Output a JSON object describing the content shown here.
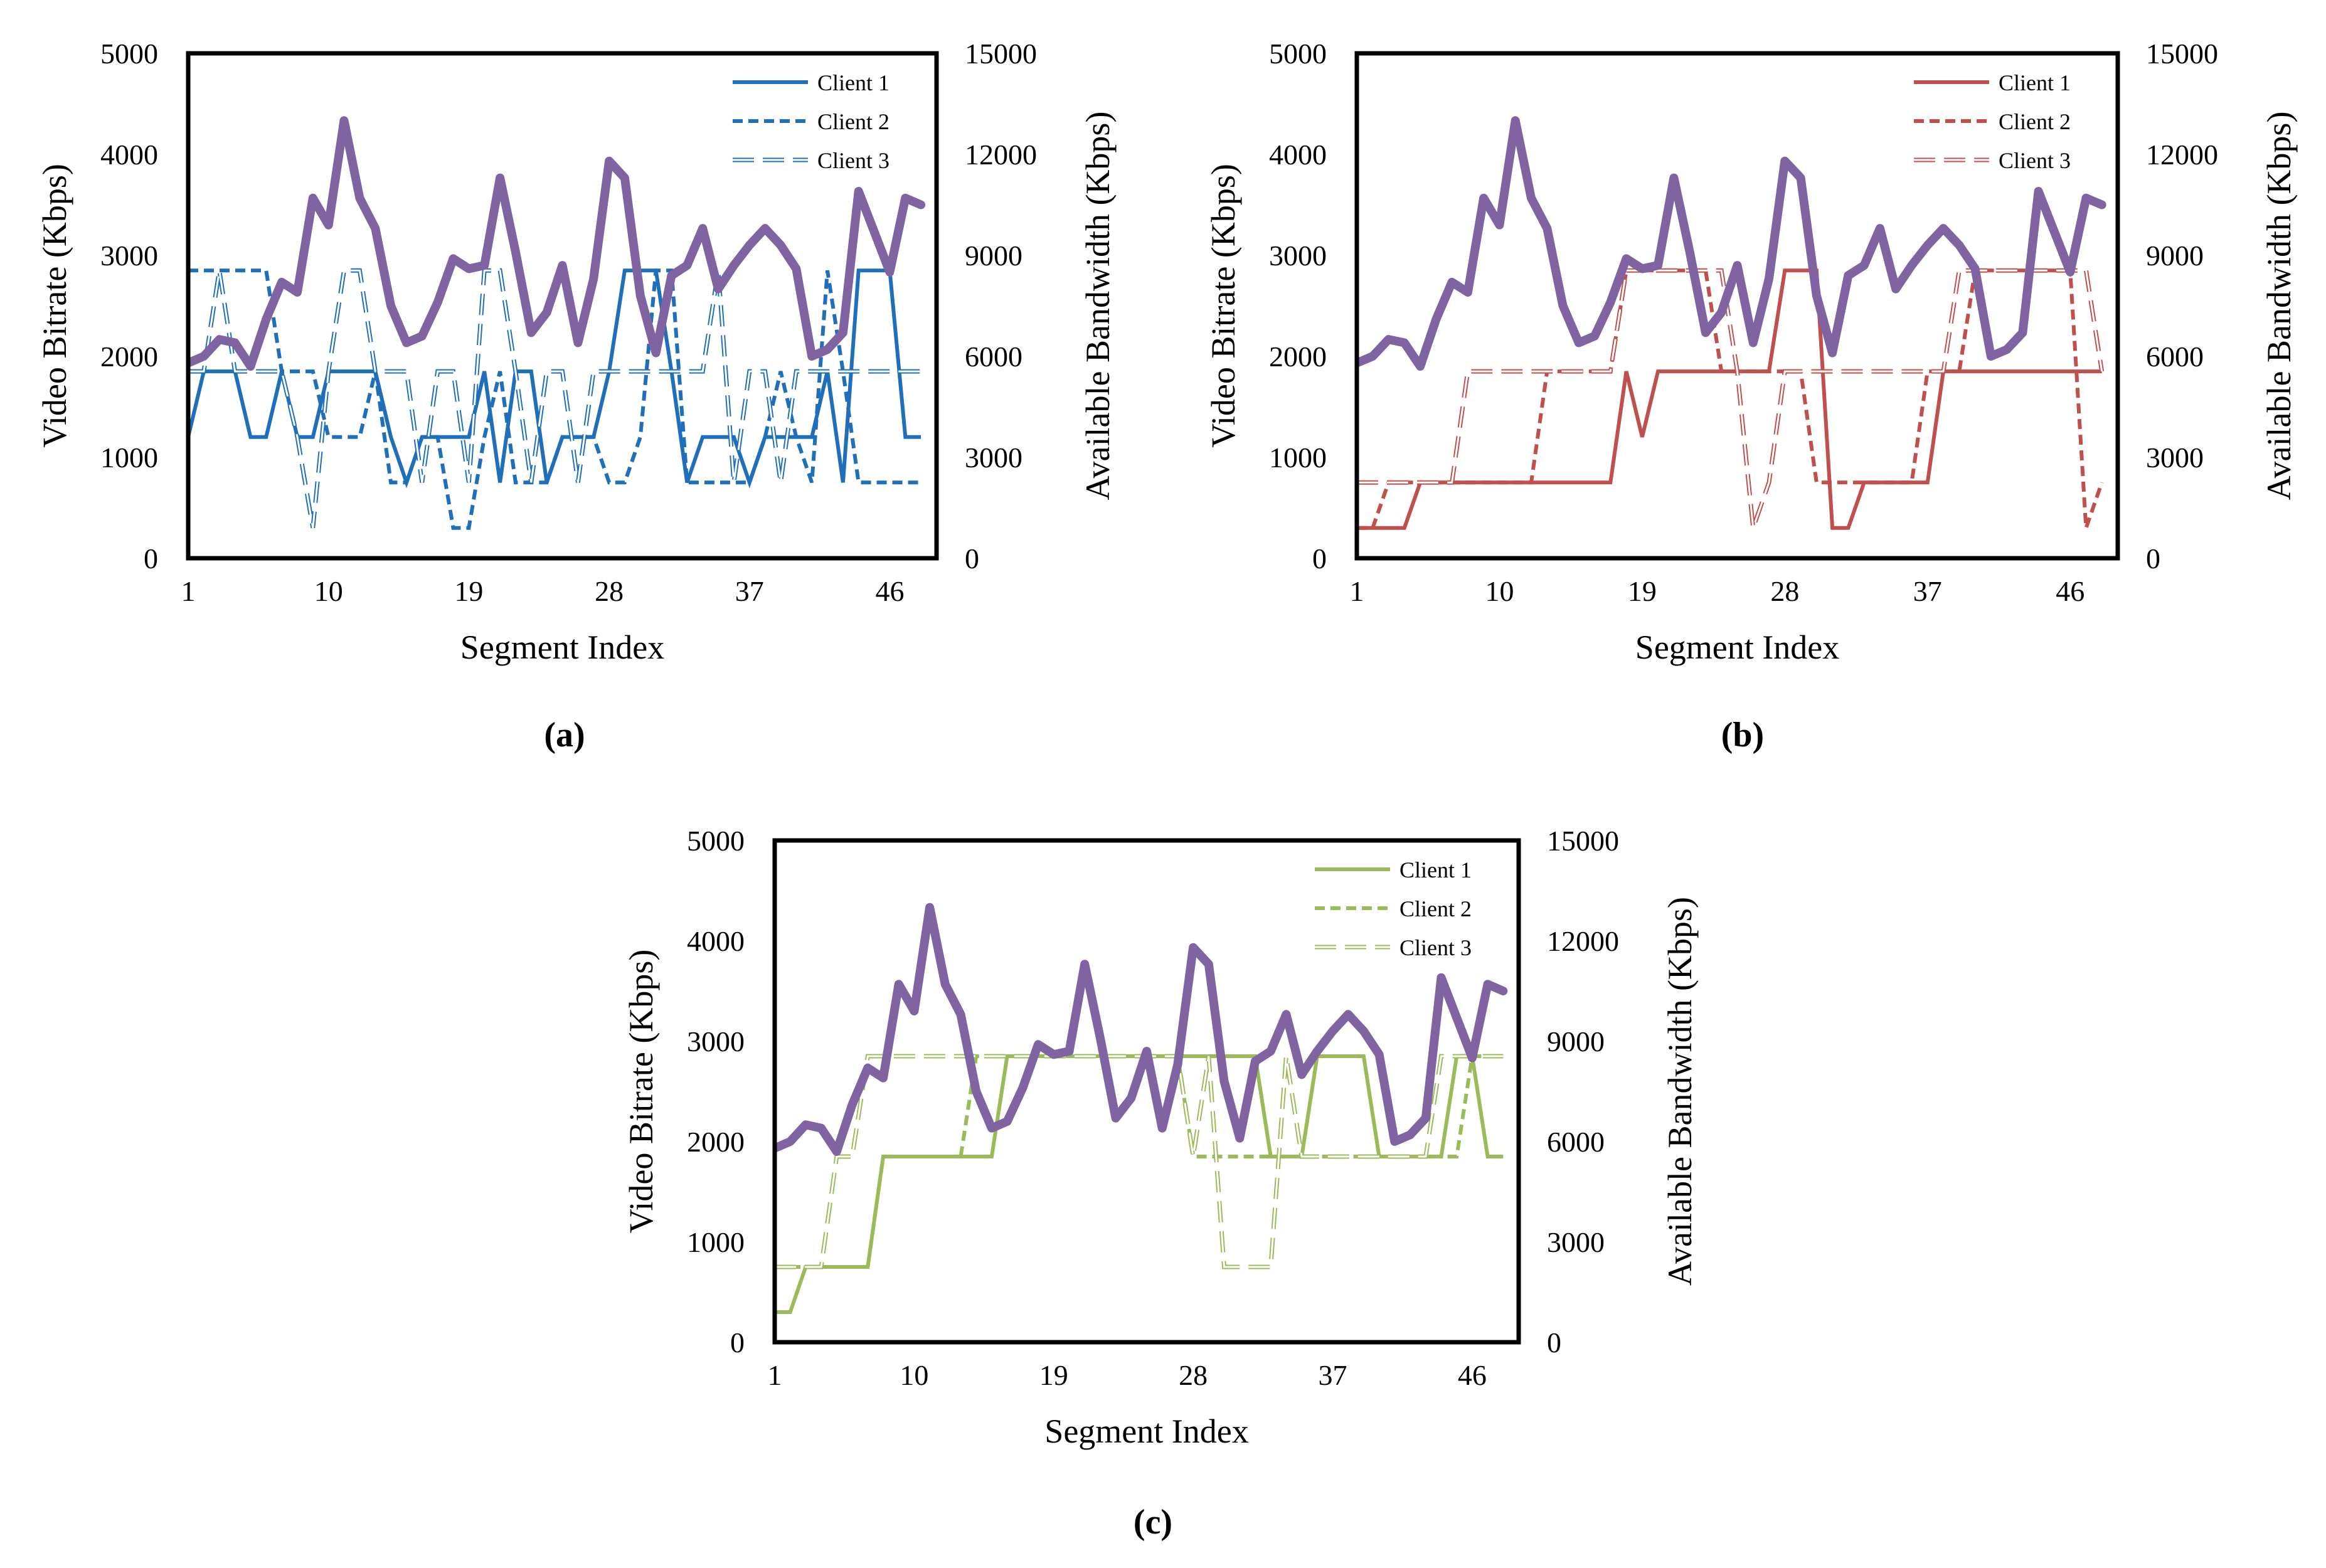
{
  "chart_data": [
    {
      "type": "line",
      "panel_label": "(a)",
      "xlabel": "Segment Index",
      "ylabel": "Video Bitrate (Kbps)",
      "y2label": "Available Bandwidth (Kbps)",
      "x_ticks": [
        "1",
        "10",
        "19",
        "28",
        "37",
        "46"
      ],
      "y_ticks": [
        "0",
        "1000",
        "2000",
        "3000",
        "4000",
        "5000"
      ],
      "y2_ticks": [
        "0",
        "3000",
        "6000",
        "9000",
        "12000",
        "15000"
      ],
      "xlim": [
        1,
        49
      ],
      "ylim": [
        0,
        5000
      ],
      "y2lim": [
        0,
        15000
      ],
      "color": "#1f6fba",
      "legend": [
        "Client 1",
        "Client 2",
        "Client 3"
      ],
      "series": [
        {
          "name": "Client 1",
          "style": "solid",
          "values": [
            1200,
            1850,
            1850,
            1850,
            1200,
            1200,
            1850,
            1200,
            1200,
            1850,
            1850,
            1850,
            1850,
            1200,
            750,
            1200,
            1200,
            1200,
            1200,
            1850,
            750,
            1850,
            1850,
            750,
            1200,
            1200,
            1200,
            1850,
            2850,
            2850,
            2850,
            1850,
            750,
            1200,
            1200,
            1200,
            750,
            1200,
            1200,
            1200,
            1200,
            1850,
            750,
            2850,
            2850,
            2850,
            1200,
            1200
          ]
        },
        {
          "name": "Client 2",
          "style": "dashed",
          "values": [
            2850,
            2850,
            2850,
            2850,
            2850,
            2850,
            1850,
            1850,
            1850,
            1200,
            1200,
            1200,
            1850,
            750,
            750,
            1200,
            1200,
            300,
            300,
            1200,
            1850,
            750,
            750,
            750,
            1200,
            1200,
            1200,
            750,
            750,
            1200,
            2850,
            2850,
            750,
            750,
            750,
            750,
            750,
            1200,
            1850,
            1200,
            750,
            2850,
            1850,
            750,
            750,
            750,
            750,
            750
          ]
        },
        {
          "name": "Client 3",
          "style": "hollow",
          "values": [
            1850,
            1850,
            2850,
            1850,
            1850,
            1850,
            1850,
            1200,
            300,
            1850,
            2850,
            2850,
            1850,
            1850,
            1850,
            750,
            1850,
            1850,
            750,
            2850,
            2850,
            1850,
            750,
            1850,
            1850,
            750,
            1850,
            1850,
            1850,
            1850,
            1850,
            1850,
            1850,
            1850,
            2850,
            750,
            1850,
            1850,
            750,
            1850,
            1850,
            1850,
            1850,
            1850,
            1850,
            1850,
            1850,
            1850
          ]
        },
        {
          "name": "Available Bandwidth",
          "style": "bandwidth",
          "axis": "right",
          "values": [
            5800,
            6000,
            6500,
            6400,
            5700,
            7100,
            8200,
            7900,
            10700,
            9900,
            13000,
            10700,
            9800,
            7500,
            6400,
            6600,
            7600,
            8900,
            8600,
            8700,
            11300,
            9100,
            6700,
            7300,
            8700,
            6400,
            8300,
            11800,
            11300,
            7800,
            6100,
            8400,
            8700,
            9800,
            8000,
            8700,
            9300,
            9800,
            9300,
            8600,
            6000,
            6200,
            6700,
            10900,
            9700,
            8500,
            10700,
            10500
          ]
        }
      ]
    },
    {
      "type": "line",
      "panel_label": "(b)",
      "xlabel": "Segment Index",
      "ylabel": "Video Bitrate (Kbps)",
      "y2label": "Available Bandwidth (Kbps)",
      "x_ticks": [
        "1",
        "10",
        "19",
        "28",
        "37",
        "46"
      ],
      "y_ticks": [
        "0",
        "1000",
        "2000",
        "3000",
        "4000",
        "5000"
      ],
      "y2_ticks": [
        "0",
        "3000",
        "6000",
        "9000",
        "12000",
        "15000"
      ],
      "xlim": [
        1,
        49
      ],
      "ylim": [
        0,
        5000
      ],
      "y2lim": [
        0,
        15000
      ],
      "color": "#c0504d",
      "legend": [
        "Client 1",
        "Client 2",
        "Client 3"
      ],
      "series": [
        {
          "name": "Client 1",
          "style": "solid",
          "values": [
            300,
            300,
            300,
            300,
            750,
            750,
            750,
            750,
            750,
            750,
            750,
            750,
            750,
            750,
            750,
            750,
            750,
            1850,
            1200,
            1850,
            1850,
            1850,
            1850,
            1850,
            1850,
            1850,
            1850,
            2850,
            2850,
            2850,
            300,
            300,
            750,
            750,
            750,
            750,
            750,
            1850,
            1850,
            1850,
            1850,
            1850,
            1850,
            1850,
            1850,
            1850,
            1850,
            1850
          ]
        },
        {
          "name": "Client 2",
          "style": "dashed",
          "values": [
            300,
            300,
            750,
            750,
            750,
            750,
            750,
            750,
            750,
            750,
            750,
            750,
            1850,
            1850,
            1850,
            1850,
            1850,
            2850,
            2850,
            2850,
            2850,
            2850,
            2850,
            1850,
            1850,
            1850,
            1850,
            1850,
            1850,
            750,
            750,
            750,
            750,
            750,
            750,
            750,
            1850,
            1850,
            1850,
            2850,
            2850,
            2850,
            2850,
            2850,
            2850,
            2850,
            300,
            750
          ]
        },
        {
          "name": "Client 3",
          "style": "hollow",
          "values": [
            750,
            750,
            750,
            750,
            750,
            750,
            750,
            1850,
            1850,
            1850,
            1850,
            1850,
            1850,
            1850,
            1850,
            1850,
            1850,
            2850,
            2850,
            2850,
            2850,
            2850,
            2850,
            2850,
            1850,
            300,
            750,
            1850,
            1850,
            1850,
            1850,
            1850,
            1850,
            1850,
            1850,
            1850,
            1850,
            1850,
            2850,
            2850,
            2850,
            2850,
            2850,
            2850,
            2850,
            2850,
            2850,
            1850
          ]
        },
        {
          "name": "Available Bandwidth",
          "style": "bandwidth",
          "axis": "right",
          "values": [
            5800,
            6000,
            6500,
            6400,
            5700,
            7100,
            8200,
            7900,
            10700,
            9900,
            13000,
            10700,
            9800,
            7500,
            6400,
            6600,
            7600,
            8900,
            8600,
            8700,
            11300,
            9100,
            6700,
            7300,
            8700,
            6400,
            8300,
            11800,
            11300,
            7800,
            6100,
            8400,
            8700,
            9800,
            8000,
            8700,
            9300,
            9800,
            9300,
            8600,
            6000,
            6200,
            6700,
            10900,
            9700,
            8500,
            10700,
            10500
          ]
        }
      ]
    },
    {
      "type": "line",
      "panel_label": "(c)",
      "xlabel": "Segment Index",
      "ylabel": "Video Bitrate (Kbps)",
      "y2label": "Available Bandwidth (Kbps)",
      "x_ticks": [
        "1",
        "10",
        "19",
        "28",
        "37",
        "46"
      ],
      "y_ticks": [
        "0",
        "1000",
        "2000",
        "3000",
        "4000",
        "5000"
      ],
      "y2_ticks": [
        "0",
        "3000",
        "6000",
        "9000",
        "12000",
        "15000"
      ],
      "xlim": [
        1,
        49
      ],
      "ylim": [
        0,
        5000
      ],
      "y2lim": [
        0,
        15000
      ],
      "color": "#9bbb59",
      "legend": [
        "Client 1",
        "Client 2",
        "Client 3"
      ],
      "series": [
        {
          "name": "Client 1",
          "style": "solid",
          "values": [
            300,
            300,
            750,
            750,
            750,
            750,
            750,
            1850,
            1850,
            1850,
            1850,
            1850,
            1850,
            1850,
            1850,
            2850,
            2850,
            2850,
            2850,
            2850,
            2850,
            2850,
            2850,
            2850,
            2850,
            2850,
            2850,
            2850,
            2850,
            2850,
            2850,
            2850,
            1850,
            1850,
            1850,
            2850,
            2850,
            2850,
            2850,
            1850,
            1850,
            1850,
            1850,
            1850,
            2850,
            2850,
            1850,
            1850
          ]
        },
        {
          "name": "Client 2",
          "style": "dashed",
          "values": [
            750,
            750,
            750,
            750,
            750,
            750,
            750,
            1850,
            1850,
            1850,
            1850,
            1850,
            1850,
            2850,
            2850,
            2850,
            2850,
            2850,
            2850,
            2850,
            2850,
            2850,
            2850,
            2850,
            2850,
            2850,
            2850,
            1850,
            1850,
            1850,
            1850,
            1850,
            1850,
            1850,
            1850,
            1850,
            1850,
            1850,
            1850,
            1850,
            1850,
            1850,
            1850,
            1850,
            1850,
            2850,
            2850,
            2850
          ]
        },
        {
          "name": "Client 3",
          "style": "hollow",
          "values": [
            750,
            750,
            750,
            750,
            1850,
            1850,
            2850,
            2850,
            2850,
            2850,
            2850,
            2850,
            2850,
            2850,
            2850,
            2850,
            2850,
            2850,
            2850,
            2850,
            2850,
            2850,
            2850,
            2850,
            2850,
            2850,
            2850,
            1850,
            2850,
            750,
            750,
            750,
            750,
            2850,
            1850,
            1850,
            1850,
            1850,
            1850,
            1850,
            1850,
            1850,
            1850,
            2850,
            2850,
            2850,
            2850,
            2850
          ]
        },
        {
          "name": "Available Bandwidth",
          "style": "bandwidth",
          "axis": "right",
          "values": [
            5800,
            6000,
            6500,
            6400,
            5700,
            7100,
            8200,
            7900,
            10700,
            9900,
            13000,
            10700,
            9800,
            7500,
            6400,
            6600,
            7600,
            8900,
            8600,
            8700,
            11300,
            9100,
            6700,
            7300,
            8700,
            6400,
            8300,
            11800,
            11300,
            7800,
            6100,
            8400,
            8700,
            9800,
            8000,
            8700,
            9300,
            9800,
            9300,
            8600,
            6000,
            6200,
            6700,
            10900,
            9700,
            8500,
            10700,
            10500
          ]
        }
      ]
    }
  ],
  "colors": {
    "bandwidth": "#8064a2",
    "frame": "#000000"
  }
}
